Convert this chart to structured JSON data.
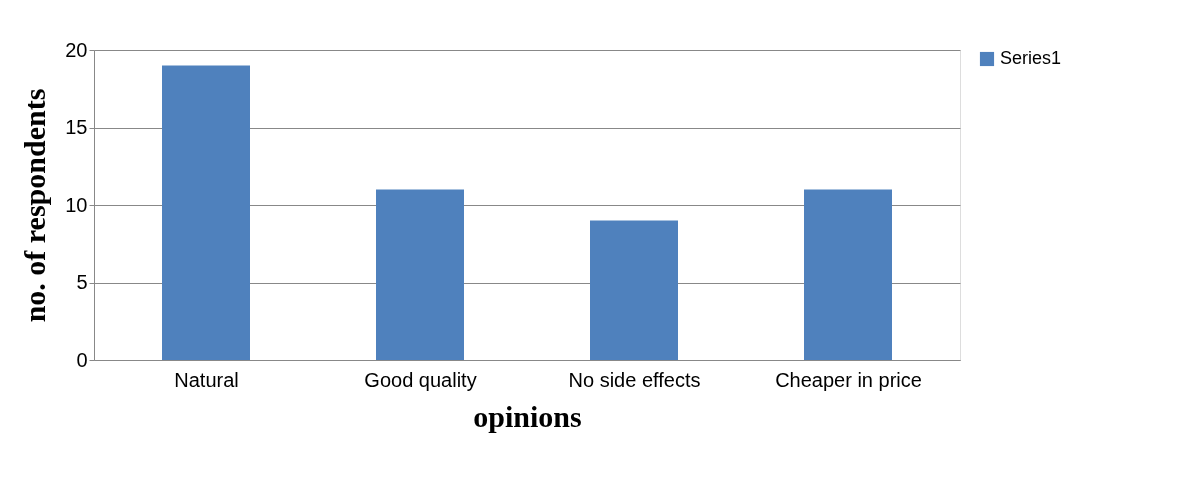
{
  "chart_data": {
    "type": "bar",
    "xlabel": "opinions",
    "ylabel": "no. of respondents",
    "categories": [
      "Natural",
      "Good quality",
      "No side effects",
      "Cheaper in price"
    ],
    "series": [
      {
        "name": "Series1",
        "color": "#4f81bd",
        "values": [
          19,
          11,
          9,
          11
        ]
      }
    ],
    "ylim": [
      0,
      20
    ],
    "yticks": [
      0,
      5,
      10,
      15,
      20
    ],
    "grid": "y",
    "legend": "right"
  }
}
